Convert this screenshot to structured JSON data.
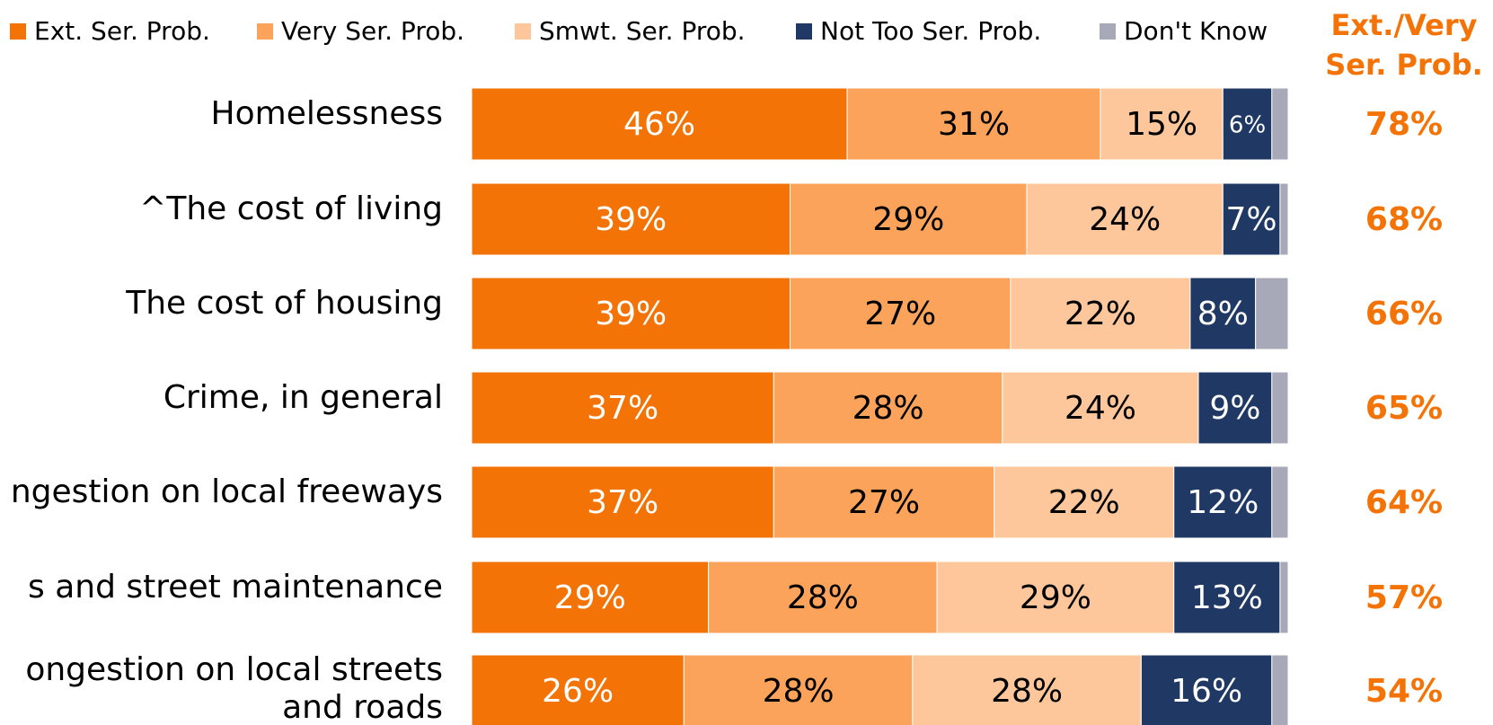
{
  "chart_data": {
    "type": "stacked-bar-horizontal",
    "categories": [
      "Homelessness",
      "^The cost of living",
      "The cost of housing",
      "Crime, in general",
      "ngestion on local freeways",
      "s and street maintenance",
      [
        "ongestion on local streets",
        "and roads"
      ]
    ],
    "xlim": [
      0,
      100
    ],
    "series": [
      {
        "name": "Ext. Ser. Prob.",
        "color": "#f47306",
        "label_color": "#ffffff",
        "values": [
          46,
          39,
          39,
          37,
          37,
          29,
          26
        ],
        "value_labels": [
          "46%",
          "39%",
          "39%",
          "37%",
          "37%",
          "29%",
          "26%"
        ]
      },
      {
        "name": "Very Ser. Prob.",
        "color": "#fba35a",
        "label_color": "#000000",
        "values": [
          31,
          29,
          27,
          28,
          27,
          28,
          28
        ],
        "value_labels": [
          "31%",
          "29%",
          "27%",
          "28%",
          "27%",
          "28%",
          "28%"
        ]
      },
      {
        "name": "Smwt. Ser. Prob.",
        "color": "#fdc79b",
        "label_color": "#000000",
        "values": [
          15,
          24,
          22,
          24,
          22,
          29,
          28
        ],
        "value_labels": [
          "15%",
          "24%",
          "22%",
          "24%",
          "22%",
          "29%",
          "28%"
        ]
      },
      {
        "name": "Not Too Ser. Prob.",
        "color": "#1f3864",
        "label_color": "#ffffff",
        "values": [
          6,
          7,
          8,
          9,
          12,
          13,
          16
        ],
        "value_labels": [
          "6%",
          "7%",
          "8%",
          "9%",
          "12%",
          "13%",
          "16%"
        ]
      },
      {
        "name": "Don't Know",
        "color": "#a8a9b8",
        "values": [
          2,
          1,
          4,
          2,
          2,
          1,
          2
        ]
      }
    ],
    "totals": {
      "title": [
        "Ext./Very",
        "Ser. Prob."
      ],
      "color": "#f47306",
      "values": [
        78,
        68,
        66,
        65,
        64,
        57,
        54
      ],
      "value_labels": [
        "78%",
        "68%",
        "66%",
        "65%",
        "64%",
        "57%",
        "54%"
      ]
    }
  }
}
